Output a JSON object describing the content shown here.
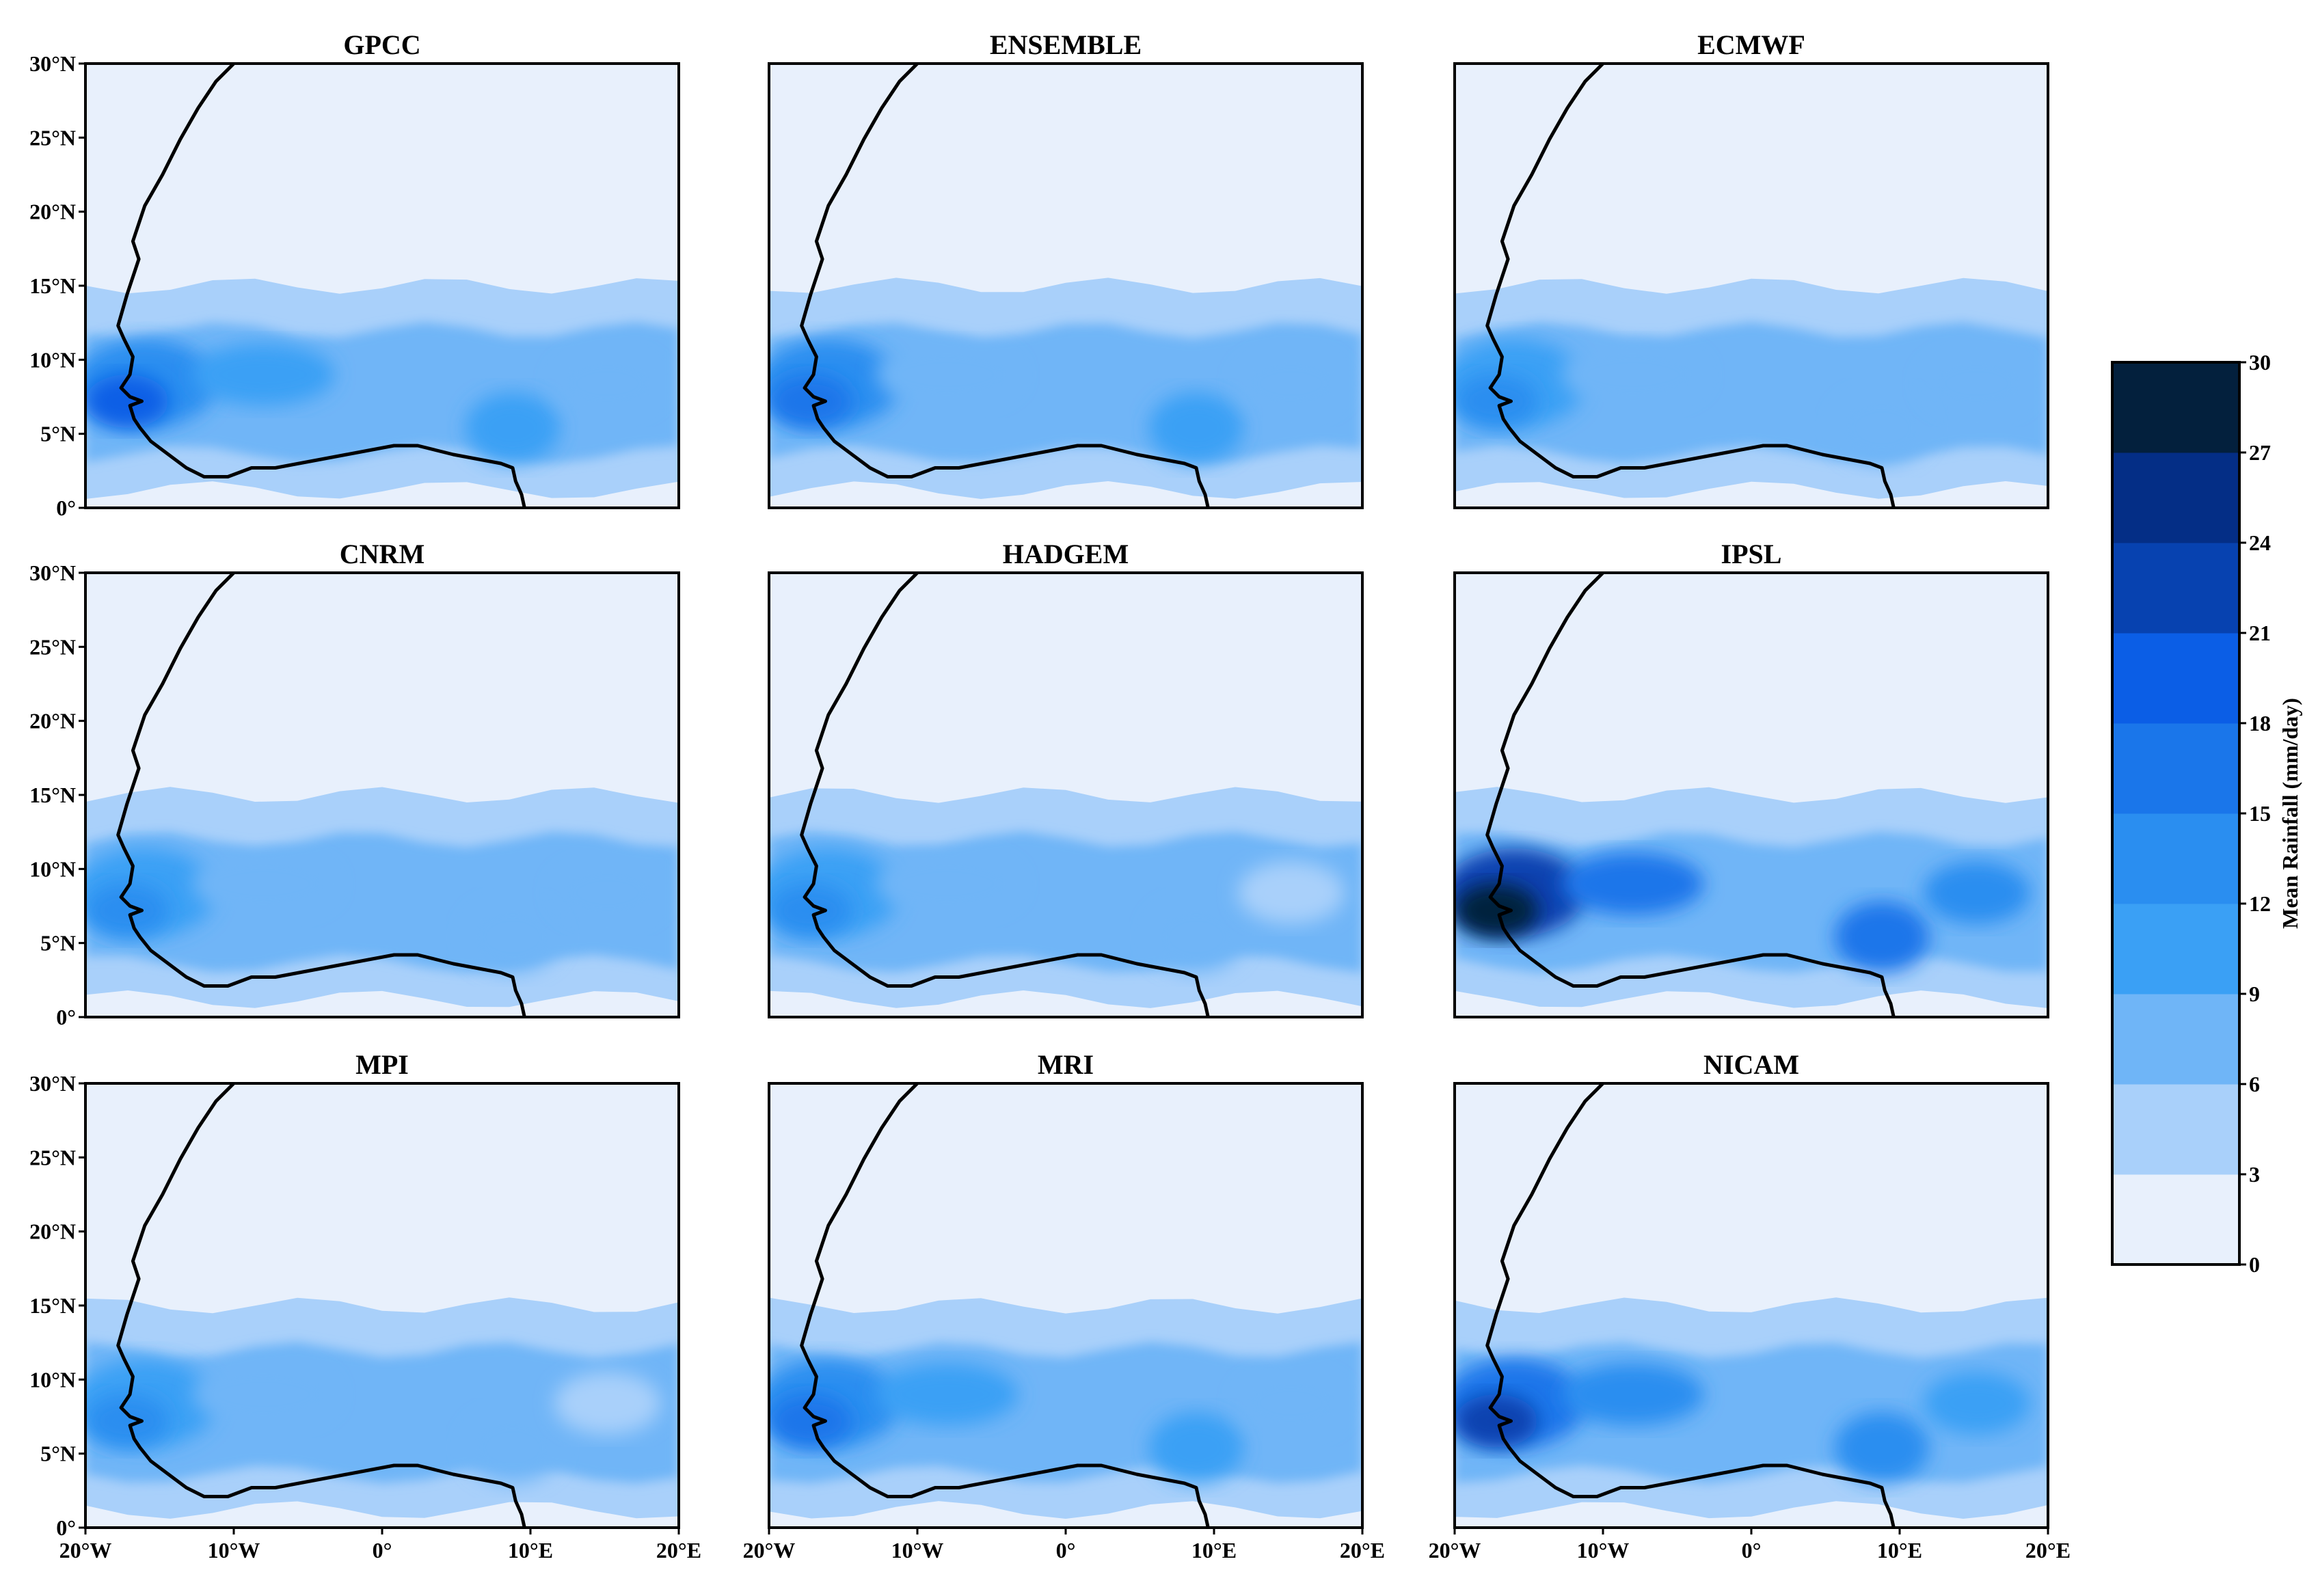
{
  "figure": {
    "panels": [
      {
        "id": "gpcc",
        "title": "GPCC",
        "peak_mm_day": 18
      },
      {
        "id": "ensemble",
        "title": "ENSEMBLE",
        "peak_mm_day": 16
      },
      {
        "id": "ecmwf",
        "title": "ECMWF",
        "peak_mm_day": 14
      },
      {
        "id": "cnrm",
        "title": "CNRM",
        "peak_mm_day": 14
      },
      {
        "id": "hadgem",
        "title": "HADGEM",
        "peak_mm_day": 13
      },
      {
        "id": "ipsl",
        "title": "IPSL",
        "peak_mm_day": 28
      },
      {
        "id": "mpi",
        "title": "MPI",
        "peak_mm_day": 13
      },
      {
        "id": "mri",
        "title": "MRI",
        "peak_mm_day": 17
      },
      {
        "id": "nicam",
        "title": "NICAM",
        "peak_mm_day": 23
      }
    ],
    "lat_labels": [
      "30°N",
      "25°N",
      "20°N",
      "15°N",
      "10°N",
      "5°N",
      "0°"
    ],
    "lon_labels": [
      "20°W",
      "10°W",
      "0°",
      "10°E",
      "20°E"
    ],
    "extent": {
      "lon": [
        -20,
        20
      ],
      "lat": [
        0,
        30
      ]
    },
    "colorbar": {
      "title": "Mean Rainfall  (mm/day)",
      "levels": [
        "0",
        "3",
        "6",
        "9",
        "12",
        "15",
        "18",
        "21",
        "24",
        "27",
        "30"
      ],
      "colors": [
        "#e8f0fc",
        "#a9d0fa",
        "#6fb5f7",
        "#3aa0f5",
        "#2a8ef0",
        "#1a76ea",
        "#0b5ee6",
        "#0742b0",
        "#042e86",
        "#03203d"
      ]
    }
  }
}
